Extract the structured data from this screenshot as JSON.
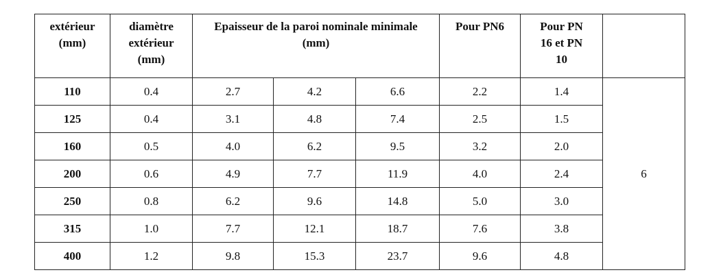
{
  "table": {
    "header": [
      "extérieur (mm)",
      "diamètre extérieur (mm)",
      "Epaisseur de la paroi nominale minimale (mm)",
      "Pour PN6",
      "Pour PN 16 et PN 10"
    ],
    "rows": [
      [
        "110",
        "0.4",
        "2.7",
        "4.2",
        "6.6",
        "2.2",
        "1.4"
      ],
      [
        "125",
        "0.4",
        "3.1",
        "4.8",
        "7.4",
        "2.5",
        "1.5"
      ],
      [
        "160",
        "0.5",
        "4.0",
        "6.2",
        "9.5",
        "3.2",
        "2.0"
      ],
      [
        "200",
        "0.6",
        "4.9",
        "7.7",
        "11.9",
        "4.0",
        "2.4"
      ],
      [
        "250",
        "0.8",
        "6.2",
        "9.6",
        "14.8",
        "5.0",
        "3.0"
      ],
      [
        "315",
        "1.0",
        "7.7",
        "12.1",
        "18.7",
        "7.6",
        "3.8"
      ],
      [
        "400",
        "1.2",
        "9.8",
        "15.3",
        "23.7",
        "9.6",
        "4.8"
      ]
    ],
    "merged_value": "6"
  }
}
